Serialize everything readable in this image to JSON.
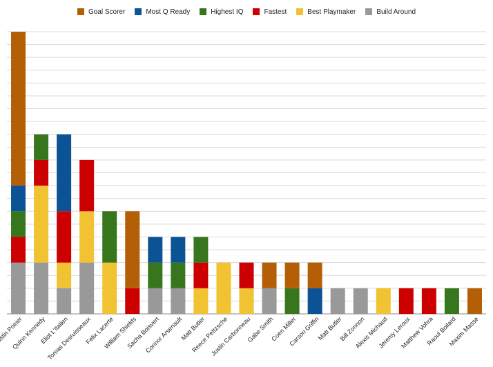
{
  "chart_data": {
    "type": "bar",
    "stacked": true,
    "categories": [
      "Justin Poirier",
      "Quinn Kennedy",
      "Eliot L'Italien",
      "Tomas Desruisseaux",
      "Felix Lacerte",
      "William Shields",
      "Sacha Boisvert",
      "Connor Arsenault",
      "Matt Butler",
      "Reece Pettzsche",
      "Justin Carbonneau",
      "Gabe Smith",
      "Coen Miller",
      "Carson Griffin",
      "Matt Butler",
      "Bill Zonnon",
      "Alexis Michaud",
      "Jeremy Leroux",
      "Matthew Vohra",
      "Raoul Boilard",
      "Maxim Masse"
    ],
    "series": [
      {
        "name": "Build Around",
        "color": "#999999",
        "values": [
          2,
          2,
          1,
          2,
          0,
          0,
          1,
          1,
          0,
          0,
          0,
          1,
          0,
          0,
          1,
          1,
          0,
          0,
          0,
          0,
          0
        ]
      },
      {
        "name": "Best Playmaker",
        "color": "#f1c232",
        "values": [
          0,
          3,
          1,
          2,
          2,
          0,
          0,
          0,
          1,
          2,
          1,
          0,
          0,
          0,
          0,
          0,
          1,
          0,
          0,
          0,
          0
        ]
      },
      {
        "name": "Fastest",
        "color": "#cc0000",
        "values": [
          1,
          1,
          2,
          2,
          0,
          1,
          0,
          0,
          1,
          0,
          1,
          0,
          0,
          0,
          0,
          0,
          0,
          1,
          1,
          0,
          0
        ]
      },
      {
        "name": "Highest IQ",
        "color": "#38761d",
        "values": [
          1,
          1,
          0,
          0,
          2,
          0,
          1,
          1,
          1,
          0,
          0,
          0,
          1,
          0,
          0,
          0,
          0,
          0,
          0,
          1,
          0
        ]
      },
      {
        "name": "Most Q Ready",
        "color": "#0b5394",
        "values": [
          1,
          0,
          3,
          0,
          0,
          0,
          1,
          1,
          0,
          0,
          0,
          0,
          0,
          1,
          0,
          0,
          0,
          0,
          0,
          0,
          0
        ]
      },
      {
        "name": "Goal Scorer",
        "color": "#b45f06",
        "values": [
          6,
          0,
          0,
          0,
          0,
          3,
          0,
          0,
          0,
          0,
          0,
          1,
          1,
          1,
          0,
          0,
          0,
          0,
          0,
          0,
          1
        ]
      }
    ],
    "legend_order": [
      "Goal Scorer",
      "Most Q Ready",
      "Highest IQ",
      "Fastest",
      "Best Playmaker",
      "Build Around"
    ],
    "ylim": [
      0,
      11
    ],
    "gridlines": true,
    "legend_position": "top"
  }
}
